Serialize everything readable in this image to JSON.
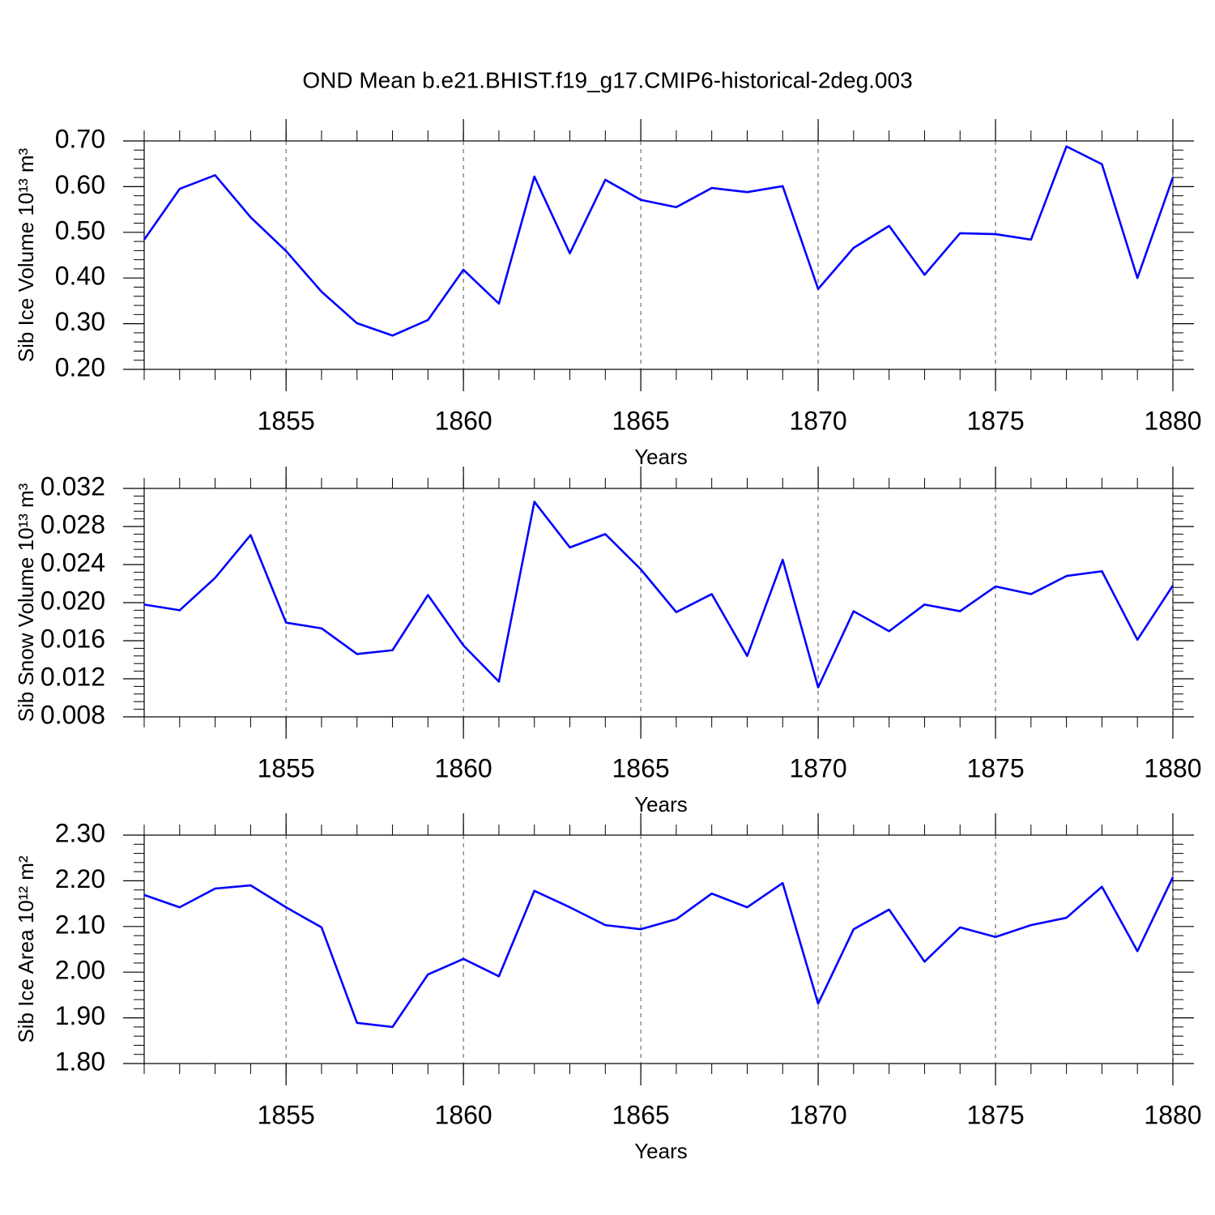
{
  "chart_data": [
    {
      "type": "line",
      "title": "OND Mean b.e21.BHIST.f19_g17.CMIP6-historical-2deg.003",
      "xlabel": "Years",
      "ylabel": "Sib Ice Volume 10¹³ m³",
      "x": [
        1851,
        1852,
        1853,
        1854,
        1855,
        1856,
        1857,
        1858,
        1859,
        1860,
        1861,
        1862,
        1863,
        1864,
        1865,
        1866,
        1867,
        1868,
        1869,
        1870,
        1871,
        1872,
        1873,
        1874,
        1875,
        1876,
        1877,
        1878,
        1879,
        1880
      ],
      "series": [
        {
          "color": "#0000ff",
          "values": [
            0.484,
            0.595,
            0.625,
            0.533,
            0.459,
            0.37,
            0.301,
            0.274,
            0.308,
            0.418,
            0.344,
            0.622,
            0.454,
            0.615,
            0.571,
            0.555,
            0.597,
            0.588,
            0.601,
            0.376,
            0.466,
            0.514,
            0.407,
            0.498,
            0.496,
            0.484,
            0.688,
            0.649,
            0.4,
            0.62
          ]
        }
      ],
      "xlim": [
        1851,
        1880
      ],
      "xticks": [
        1855,
        1860,
        1865,
        1870,
        1875,
        1880
      ],
      "ylim": [
        0.2,
        0.7
      ],
      "yticks": [
        {
          "value": 0.2,
          "label": "0.20"
        },
        {
          "value": 0.3,
          "label": "0.30"
        },
        {
          "value": 0.4,
          "label": "0.40"
        },
        {
          "value": 0.5,
          "label": "0.50"
        },
        {
          "value": 0.6,
          "label": "0.60"
        },
        {
          "value": 0.7,
          "label": "0.70"
        }
      ],
      "xgrid": true
    },
    {
      "type": "line",
      "xlabel": "Years",
      "ylabel": "Sib Snow Volume 10¹³ m³",
      "x": [
        1851,
        1852,
        1853,
        1854,
        1855,
        1856,
        1857,
        1858,
        1859,
        1860,
        1861,
        1862,
        1863,
        1864,
        1865,
        1866,
        1867,
        1868,
        1869,
        1870,
        1871,
        1872,
        1873,
        1874,
        1875,
        1876,
        1877,
        1878,
        1879,
        1880
      ],
      "series": [
        {
          "color": "#0000ff",
          "values": [
            0.0198,
            0.0192,
            0.0226,
            0.0271,
            0.0179,
            0.0173,
            0.0146,
            0.015,
            0.0208,
            0.0155,
            0.0117,
            0.0306,
            0.0258,
            0.0272,
            0.0235,
            0.019,
            0.0209,
            0.0144,
            0.0245,
            0.0111,
            0.0191,
            0.017,
            0.0198,
            0.0191,
            0.0217,
            0.0209,
            0.0228,
            0.0233,
            0.0161,
            0.0218
          ]
        }
      ],
      "xlim": [
        1851,
        1880
      ],
      "xticks": [
        1855,
        1860,
        1865,
        1870,
        1875,
        1880
      ],
      "ylim": [
        0.008,
        0.032
      ],
      "yticks": [
        0.008,
        0.012,
        0.016,
        {
          "value": 0.02,
          "label": "0.020"
        },
        0.024,
        0.028,
        0.032
      ],
      "xgrid": true
    },
    {
      "type": "line",
      "xlabel": "Years",
      "ylabel": "Sib Ice Area 10¹² m²",
      "x": [
        1851,
        1852,
        1853,
        1854,
        1855,
        1856,
        1857,
        1858,
        1859,
        1860,
        1861,
        1862,
        1863,
        1864,
        1865,
        1866,
        1867,
        1868,
        1869,
        1870,
        1871,
        1872,
        1873,
        1874,
        1875,
        1876,
        1877,
        1878,
        1879,
        1880
      ],
      "series": [
        {
          "color": "#0000ff",
          "values": [
            2.169,
            2.142,
            2.183,
            2.19,
            2.142,
            2.098,
            1.889,
            1.88,
            1.995,
            2.029,
            1.991,
            2.178,
            2.142,
            2.103,
            2.094,
            2.116,
            2.172,
            2.142,
            2.195,
            1.931,
            2.094,
            2.137,
            2.023,
            2.098,
            2.077,
            2.103,
            2.119,
            2.187,
            2.046,
            2.208
          ]
        }
      ],
      "xlim": [
        1851,
        1880
      ],
      "xticks": [
        1855,
        1860,
        1865,
        1870,
        1875,
        1880
      ],
      "ylim": [
        1.8,
        2.3
      ],
      "yticks": [
        {
          "value": 1.8,
          "label": "1.80"
        },
        {
          "value": 1.9,
          "label": "1.90"
        },
        {
          "value": 2.0,
          "label": "2.00"
        },
        {
          "value": 2.1,
          "label": "2.10"
        },
        {
          "value": 2.2,
          "label": "2.20"
        },
        {
          "value": 2.3,
          "label": "2.30"
        }
      ],
      "xgrid": true
    }
  ]
}
